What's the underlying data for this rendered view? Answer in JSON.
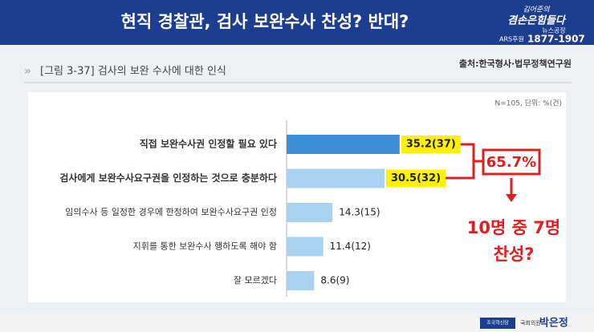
{
  "headline": "현직 경찰관, 검사 보완수사 찬성? 반대?",
  "logo": {
    "line1": "김어준의",
    "line2": "겸손은힘들다",
    "line3": "뉴스공장",
    "ars": "ARS후원",
    "phone": "1877-1907"
  },
  "footer": {
    "party": "조국혁신당",
    "role": "국회의원",
    "name": "박은정"
  },
  "chart_data": {
    "type": "hbar",
    "title": "[그림 3-37] 검사의 보완 수사에 대한 인식",
    "source": "출처:한국형사·법무정책연구원",
    "note": "N=105, 단위: %(건)",
    "categories": [
      "직접 보완수사권 인정할 필요 있다",
      "검사에게 보완수사요구권을 인정하는 것으로 충분하다",
      "임의수사 등 일정한 경우에 한정하여 보완수사요구권 인정",
      "지휘를 통한 보완수사 행하도록 해야 함",
      "잘 모르겠다"
    ],
    "values": [
      35.2,
      30.5,
      14.3,
      11.4,
      8.6
    ],
    "value_labels": [
      "35.2(37)",
      "30.5(32)",
      "14.3(15)",
      "11.4(12)",
      "8.6(9)"
    ],
    "colors": [
      "#3d8fd8",
      "#a9d2f0",
      "#a9d2f0",
      "#a9d2f0",
      "#a9d2f0"
    ],
    "highlight_labels": [
      true,
      true,
      false,
      false,
      false
    ],
    "xlim": [
      0,
      40
    ],
    "annotations": {
      "sum": "65.7%",
      "line1": "10명 중 7명",
      "line2": "찬성?"
    }
  }
}
